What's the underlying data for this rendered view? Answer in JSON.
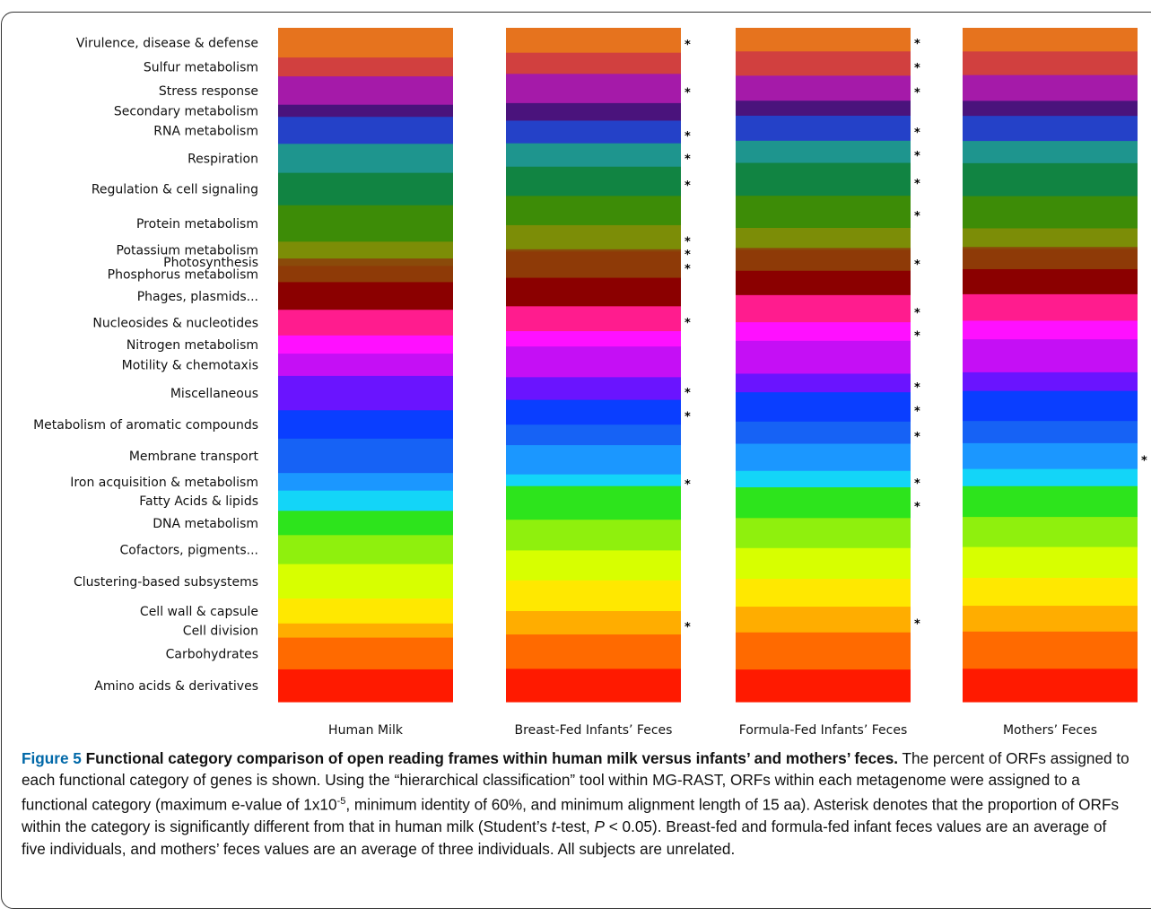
{
  "chart_data": {
    "type": "stacked-bar",
    "unit": "percent of ORFs",
    "categories_top_to_bottom": [
      "Virulence, disease & defense",
      "Sulfur metabolism",
      "Stress response",
      "Secondary metabolism",
      "RNA metabolism",
      "Respiration",
      "Regulation & cell signaling",
      "Protein metabolism",
      "Potassium metabolism",
      "Photosynthesis",
      "Phosphorus metabolism",
      "Phages, plasmids...",
      "Nucleosides & nucleotides",
      "Nitrogen metabolism",
      "Motility & chemotaxis",
      "Miscellaneous",
      "Metabolism of aromatic compounds",
      "Membrane transport",
      "Iron acquisition & metabolism",
      "Fatty Acids & lipids",
      "DNA metabolism",
      "Cofactors, pigments...",
      "Clustering-based subsystems",
      "Cell wall & capsule",
      "Cell division",
      "Carbohydrates",
      "Amino acids & derivatives"
    ],
    "category_colors": [
      "#e6731e",
      "#d1403f",
      "#a51aa9",
      "#4a137c",
      "#2441c8",
      "#1e958e",
      "#118442",
      "#3d8c07",
      "#7c8d07",
      "#8a4a0a",
      "#8e3a07",
      "#8b0000",
      "#ff1c8e",
      "#ff10ff",
      "#c50ff5",
      "#6a14ff",
      "#0a3eff",
      "#1662f5",
      "#1b97ff",
      "#13d5f8",
      "#2de41c",
      "#8ff00d",
      "#d7ff00",
      "#ffe800",
      "#ffad00",
      "#ff6a00",
      "#ff1a00"
    ],
    "series": [
      {
        "name": "Human Milk",
        "values": [
          4.4,
          2.8,
          4.2,
          1.8,
          4.0,
          4.3,
          4.8,
          5.4,
          2.5,
          1.1,
          2.4,
          4.1,
          3.8,
          2.7,
          3.3,
          5.1,
          4.2,
          5.1,
          2.6,
          3.0,
          3.6,
          4.3,
          5.1,
          3.7,
          2.1,
          4.7,
          4.8
        ],
        "significant": [
          false,
          false,
          false,
          false,
          false,
          false,
          false,
          false,
          false,
          false,
          false,
          false,
          false,
          false,
          false,
          false,
          false,
          false,
          false,
          false,
          false,
          false,
          false,
          false,
          false,
          false,
          false
        ]
      },
      {
        "name": "Breast-Fed Infants’ Feces",
        "values": [
          3.4,
          2.9,
          4.0,
          2.4,
          3.1,
          3.2,
          4.0,
          4.0,
          3.3,
          0.3,
          3.6,
          3.9,
          3.4,
          2.1,
          4.2,
          3.1,
          3.4,
          2.8,
          4.0,
          1.6,
          4.6,
          4.2,
          4.1,
          4.2,
          3.2,
          4.7,
          4.5
        ],
        "significant": [
          true,
          false,
          true,
          false,
          true,
          true,
          true,
          false,
          true,
          true,
          true,
          false,
          true,
          false,
          false,
          true,
          true,
          false,
          false,
          true,
          false,
          false,
          false,
          false,
          true,
          false,
          false
        ]
      },
      {
        "name": "Formula-Fed Infants’ Feces",
        "values": [
          3.3,
          3.4,
          3.5,
          2.1,
          3.5,
          3.1,
          4.6,
          4.5,
          2.8,
          0.3,
          2.9,
          3.4,
          3.8,
          2.6,
          4.6,
          2.6,
          4.1,
          3.1,
          3.8,
          2.3,
          4.3,
          4.2,
          4.3,
          3.9,
          3.6,
          5.2,
          4.5
        ],
        "significant": [
          true,
          true,
          true,
          false,
          true,
          true,
          true,
          true,
          false,
          false,
          true,
          false,
          true,
          true,
          false,
          true,
          true,
          true,
          false,
          true,
          true,
          false,
          false,
          false,
          true,
          false,
          false
        ]
      },
      {
        "name": "Mothers’ Feces",
        "values": [
          3.3,
          3.3,
          3.6,
          2.1,
          3.5,
          3.1,
          4.6,
          4.5,
          2.6,
          0.3,
          2.8,
          3.5,
          3.7,
          2.6,
          4.6,
          2.6,
          4.2,
          3.1,
          3.6,
          2.4,
          4.3,
          4.2,
          4.3,
          3.9,
          3.6,
          5.2,
          4.6
        ],
        "significant": [
          false,
          false,
          false,
          false,
          false,
          false,
          false,
          false,
          false,
          false,
          false,
          false,
          false,
          false,
          false,
          false,
          false,
          false,
          true,
          false,
          false,
          false,
          false,
          false,
          false,
          false,
          false
        ]
      }
    ],
    "significance_marker": "*"
  },
  "caption": {
    "figure_label": "Figure 5",
    "title": "Functional category comparison of open reading frames within human milk versus infants’ and mothers’ feces.",
    "body_part1": " The percent of ORFs assigned to each functional category of genes is shown. Using the “hierarchical classification” tool within MG-RAST, ORFs within each metagenome were assigned to a functional category (maximum e-value of 1x10",
    "exponent": "-5",
    "body_part2": ", minimum identity of 60%, and minimum alignment length of 15 aa). Asterisk denotes that the proportion of ORFs within the category is significantly different from that in human milk (Student’s ",
    "t_italic": "t",
    "body_part3": "-test, ",
    "p_italic": "P",
    "body_part4": " < 0.05). Breast-fed and formula-fed infant feces values are an average of five individuals, and mothers’ feces values are an average of three individuals. All subjects are unrelated."
  }
}
